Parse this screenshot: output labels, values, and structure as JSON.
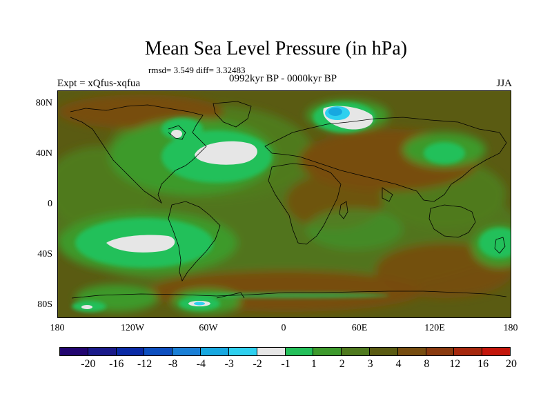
{
  "title": "Mean Sea Level Pressure (in hPa)",
  "stats": "rmsd= 3.549 diff= 3.32483",
  "subtitle": "0992kyr BP - 0000kyr BP",
  "experiment": "Expt = xQfus-xqfua",
  "season": "JJA",
  "lat_labels": [
    "80N",
    "40N",
    "0",
    "40S",
    "80S"
  ],
  "lon_labels": [
    "180",
    "120W",
    "60W",
    "0",
    "60E",
    "120E",
    "180"
  ],
  "colorbar": {
    "colors": [
      "#220570",
      "#1a1a8a",
      "#0a2aa6",
      "#0d4fc0",
      "#1a7fd6",
      "#17a8e0",
      "#2ed0ef",
      "#e6e6e6",
      "#24c05a",
      "#3d9a2c",
      "#4f7a1e",
      "#5a5b12",
      "#774d10",
      "#8a3a0f",
      "#a6280d",
      "#c4160b"
    ],
    "labels": [
      "-20",
      "-16",
      "-12",
      "-8",
      "-4",
      "-3",
      "-2",
      "-1",
      "1",
      "2",
      "3",
      "4",
      "8",
      "12",
      "16",
      "20"
    ]
  }
}
